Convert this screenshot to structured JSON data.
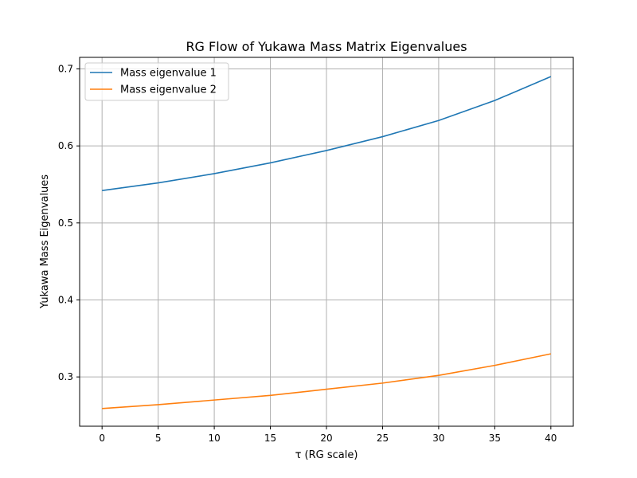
{
  "chart_data": {
    "type": "line",
    "title": "RG Flow of Yukawa Mass Matrix Eigenvalues",
    "xlabel": "τ (RG scale)",
    "ylabel": "Yukawa Mass Eigenvalues",
    "xlim": [
      -2,
      42
    ],
    "ylim": [
      0.236,
      0.715
    ],
    "xticks": [
      0,
      5,
      10,
      15,
      20,
      25,
      30,
      35,
      40
    ],
    "xtick_labels": [
      "0",
      "5",
      "10",
      "15",
      "20",
      "25",
      "30",
      "35",
      "40"
    ],
    "yticks": [
      0.3,
      0.4,
      0.5,
      0.6,
      0.7
    ],
    "ytick_labels": [
      "0.3",
      "0.4",
      "0.5",
      "0.6",
      "0.7"
    ],
    "grid": true,
    "legend_position": "upper-left",
    "x": [
      0,
      5,
      10,
      15,
      20,
      25,
      30,
      35,
      40
    ],
    "series": [
      {
        "name": "Mass eigenvalue 1",
        "color": "#1f77b4",
        "values": [
          0.542,
          0.552,
          0.564,
          0.578,
          0.594,
          0.612,
          0.633,
          0.659,
          0.69
        ]
      },
      {
        "name": "Mass eigenvalue 2",
        "color": "#ff7f0e",
        "values": [
          0.259,
          0.264,
          0.27,
          0.276,
          0.284,
          0.292,
          0.302,
          0.315,
          0.33
        ]
      }
    ]
  }
}
